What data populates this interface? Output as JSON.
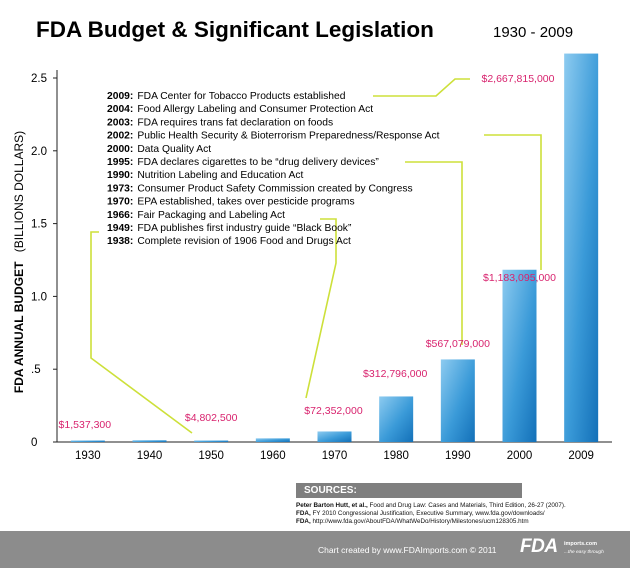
{
  "chart_data": {
    "type": "bar",
    "title": "FDA Budget & Significant Legislation",
    "subtitle": "1930 - 2009",
    "ylabel": "FDA ANNUAL BUDGET",
    "ylabel_units": "(BILLIONS DOLLARS)",
    "xlabel": "",
    "ylim": [
      0,
      2.5
    ],
    "categories": [
      "1930",
      "1940",
      "1950",
      "1960",
      "1970",
      "1980",
      "1990",
      "2000",
      "2009"
    ],
    "values": [
      0.0015373,
      0.012,
      0.0048025,
      0.025,
      0.072352,
      0.312796,
      0.567079,
      1.183095,
      2.667815
    ],
    "yticks": [
      "2.5",
      "2.0",
      "1.5",
      "1.0",
      ".5",
      "0"
    ],
    "bar_labels": [
      {
        "category": "1930",
        "text": "$1,537,300"
      },
      {
        "category": "1950",
        "text": "$4,802,500"
      },
      {
        "category": "1970",
        "text": "$72,352,000"
      },
      {
        "category": "1980",
        "text": "$312,796,000"
      },
      {
        "category": "1990",
        "text": "$567,079,000"
      },
      {
        "category": "2000",
        "text": "$1,183,095,000"
      },
      {
        "category": "2009",
        "text": "$2,667,815,000"
      }
    ],
    "legislation": [
      {
        "year": "2009",
        "text": "FDA Center for Tobacco Products established"
      },
      {
        "year": "2004",
        "text": "Food Allergy Labeling and Consumer Protection Act"
      },
      {
        "year": "2003",
        "text": "FDA requires trans fat declaration on foods"
      },
      {
        "year": "2002",
        "text": "Public Health Security & Bioterrorism Preparedness/Response Act"
      },
      {
        "year": "2000",
        "text": "Data Quality Act"
      },
      {
        "year": "1995",
        "text": "FDA declares cigarettes to be “drug delivery devices”"
      },
      {
        "year": "1990",
        "text": "Nutrition Labeling and Education Act"
      },
      {
        "year": "1973",
        "text": "Consumer Product Safety Commission created by Congress"
      },
      {
        "year": "1970",
        "text": "EPA established, takes over pesticide programs"
      },
      {
        "year": "1966",
        "text": "Fair Packaging and Labeling Act"
      },
      {
        "year": "1949",
        "text": "FDA publishes first industry guide “Black Book”"
      },
      {
        "year": "1938",
        "text": "Complete revision of 1906 Food and Drugs Act"
      }
    ],
    "colors": {
      "bar_light": "#7cc2ec",
      "bar_dark": "#1a7fc6",
      "label": "#d8236e",
      "connector": "#cde03a",
      "axis": "#222222"
    }
  },
  "sources": {
    "heading": "SOURCES:",
    "lines": [
      {
        "bold": "Peter Barton Hutt, et al.,",
        "text": " Food and Drug Law: Cases and Materials, Third Edition, 26-27 (2007)."
      },
      {
        "bold": "FDA,",
        "text": " FY 2010 Congressional Justification, Executive Summary, www.fda.gov/downloads/"
      },
      {
        "bold": "FDA,",
        "text": " http://www.fda.gov/AboutFDA/WhatWeDo/History/Milestones/ucm128305.htm"
      }
    ]
  },
  "footer": {
    "credit": "Chart created by www.FDAImports.com © 2011",
    "logo_mark": "FDA",
    "logo_site": "imports.com",
    "logo_tagline": "...the easy through"
  }
}
